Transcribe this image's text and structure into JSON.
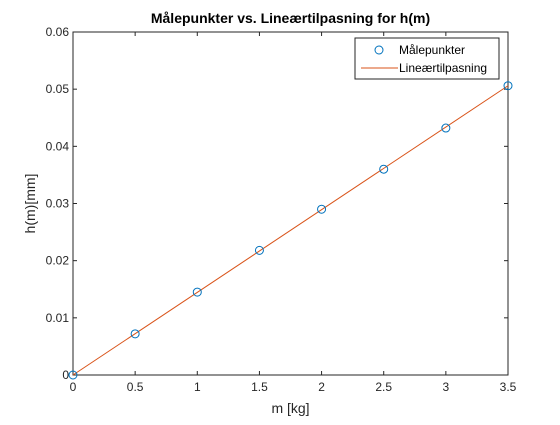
{
  "chart_data": {
    "type": "scatter",
    "title": "Målepunkter vs. Lineærtilpasning for h(m)",
    "xlabel": "m [kg]",
    "ylabel": "h(m)[mm]",
    "xlim": [
      0,
      3.5
    ],
    "ylim": [
      0,
      0.06
    ],
    "xticks": [
      "0",
      "0.5",
      "1",
      "1.5",
      "2",
      "2.5",
      "3",
      "3.5"
    ],
    "yticks": [
      "0",
      "0.01",
      "0.02",
      "0.03",
      "0.04",
      "0.05",
      "0.06"
    ],
    "grid": false,
    "legend_position": "top-right",
    "series": [
      {
        "name": "Målepunkter",
        "kind": "markers",
        "marker": "circle",
        "color": "#0072BD",
        "x": [
          0,
          0.5,
          1,
          1.5,
          2,
          2.5,
          3,
          3.5
        ],
        "y": [
          0,
          0.0072,
          0.0145,
          0.0218,
          0.029,
          0.036,
          0.0432,
          0.0506
        ]
      },
      {
        "name": "Lineærtilpasning",
        "kind": "line",
        "color": "#D95319",
        "x": [
          0,
          3.5
        ],
        "y": [
          0,
          0.0506
        ]
      }
    ]
  }
}
